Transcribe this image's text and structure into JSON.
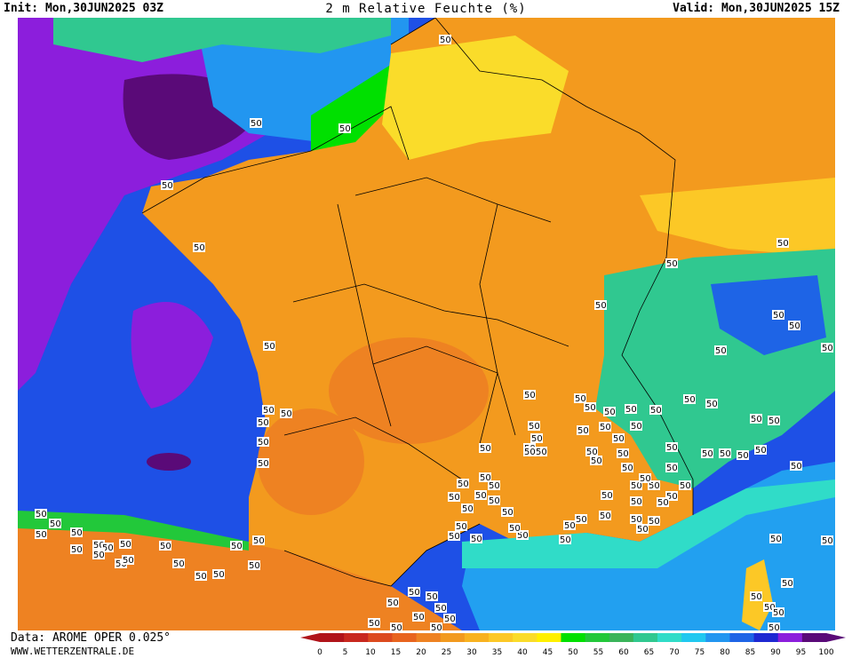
{
  "header": {
    "init": "Init: Mon,30JUN2025 03Z",
    "title": "2 m Relative Feuchte (%)",
    "valid": "Valid: Mon,30JUN2025 15Z"
  },
  "footer": {
    "source": "Data: AROME OPER 0.025°",
    "url": "WWW.WETTERZENTRALE.DE"
  },
  "colorbar": {
    "labels": [
      "0",
      "5",
      "10",
      "15",
      "20",
      "25",
      "30",
      "35",
      "40",
      "45",
      "50",
      "55",
      "60",
      "65",
      "70",
      "75",
      "80",
      "85",
      "90",
      "95",
      "100"
    ],
    "colors": [
      "#b0141a",
      "#c8281e",
      "#dc4a1e",
      "#e8641e",
      "#ee8222",
      "#f29a1e",
      "#f8b220",
      "#fcc826",
      "#fadc2a",
      "#fff000",
      "#00e000",
      "#22c83a",
      "#3ab45a",
      "#30c890",
      "#30dcc8",
      "#20c8f0",
      "#2296f0",
      "#1e64e6",
      "#1e28d2",
      "#8c1edc",
      "#5a0a78"
    ],
    "contour_label": "50"
  },
  "map": {
    "colors": {
      "land_dry": "#f39a1e",
      "land_very_dry": "#ee8222",
      "land_moist": "#fadc2a",
      "sea_blue": "#1e50e6",
      "sea_purple": "#8c1edc",
      "sea_dark": "#5a0a78",
      "coast_green": "#00e000",
      "mediterranean": "#22a0f0",
      "alps_green": "#30c890"
    }
  }
}
